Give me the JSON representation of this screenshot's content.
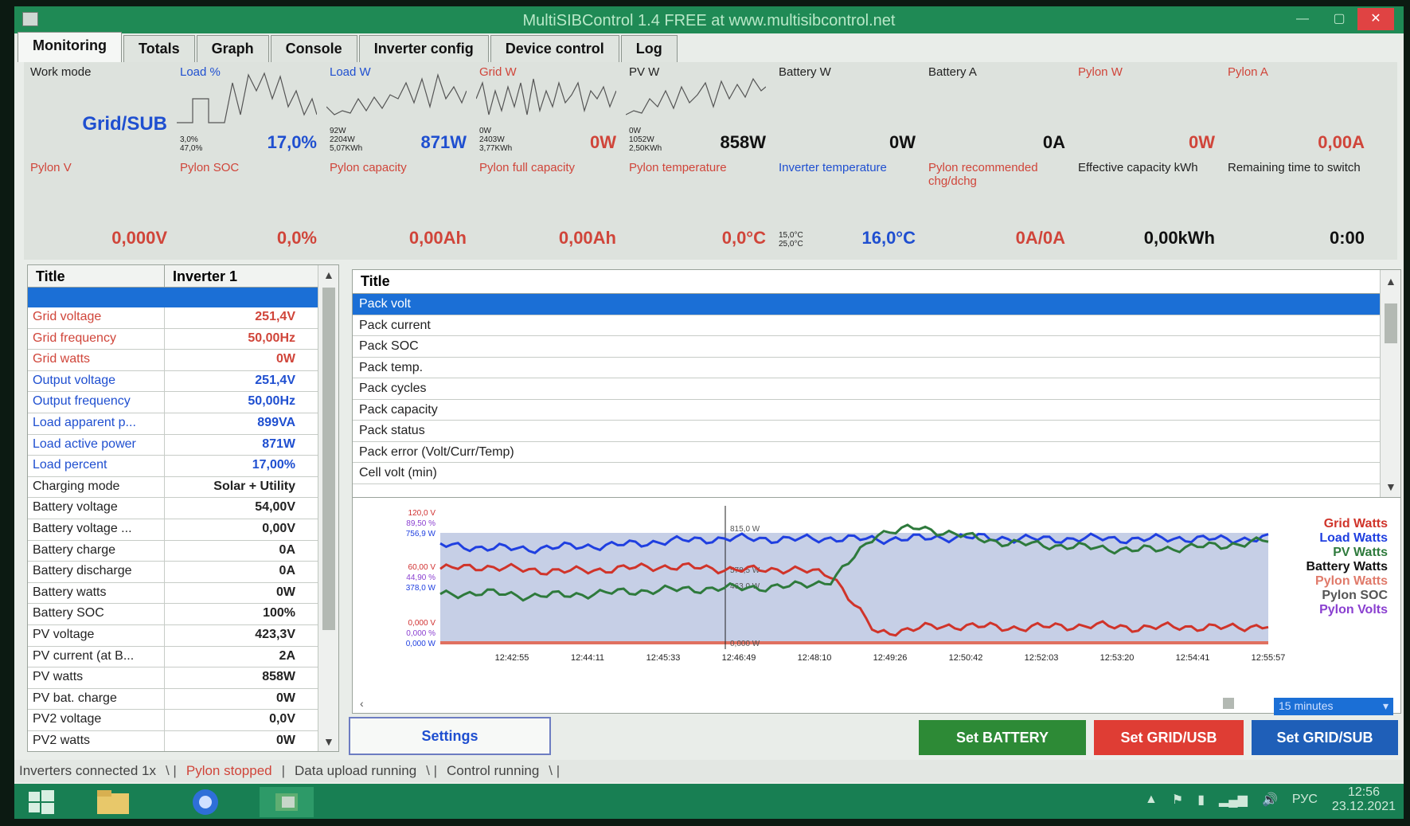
{
  "window": {
    "title": "MultiSIBControl 1.4 FREE at www.multisibcontrol.net"
  },
  "tabs": [
    "Monitoring",
    "Totals",
    "Graph",
    "Console",
    "Inverter config",
    "Device control",
    "Log"
  ],
  "tiles_top": [
    {
      "label": "Work mode",
      "value": "Grid/SUB"
    },
    {
      "label": "Load %",
      "value": "17,0%",
      "small": "3,0%\n47,0%"
    },
    {
      "label": "Load W",
      "value": "871W",
      "small": "92W\n2204W\n5,07KWh"
    },
    {
      "label": "Grid W",
      "value": "0W",
      "small": "0W\n2403W\n3,77KWh"
    },
    {
      "label": "PV W",
      "value": "858W",
      "small": "0W\n1052W\n2,50KWh"
    },
    {
      "label": "Battery W",
      "value": "0W"
    },
    {
      "label": "Battery A",
      "value": "0A"
    },
    {
      "label": "Pylon W",
      "value": "0W"
    },
    {
      "label": "Pylon A",
      "value": "0,00A"
    }
  ],
  "tiles_bottom": [
    {
      "label": "Pylon V",
      "value": "0,000V"
    },
    {
      "label": "Pylon SOC",
      "value": "0,0%"
    },
    {
      "label": "Pylon capacity",
      "value": "0,00Ah"
    },
    {
      "label": "Pylon full capacity",
      "value": "0,00Ah"
    },
    {
      "label": "Pylon temperature",
      "value": "0,0°C"
    },
    {
      "label": "Inverter temperature",
      "value": "16,0°C",
      "small": "15,0°C\n25,0°C"
    },
    {
      "label": "Pylon recommended chg/dchg",
      "value": "0A/0A"
    },
    {
      "label": "Effective capacity kWh",
      "value": "0,00kWh"
    },
    {
      "label": "Remaining time to switch",
      "value": "0:00"
    }
  ],
  "left_table": {
    "headers": [
      "Title",
      "Inverter 1"
    ],
    "rows": [
      {
        "k": "Grid voltage",
        "v": "251,4V",
        "c": "red"
      },
      {
        "k": "Grid frequency",
        "v": "50,00Hz",
        "c": "red"
      },
      {
        "k": "Grid watts",
        "v": "0W",
        "c": "red"
      },
      {
        "k": "Output voltage",
        "v": "251,4V",
        "c": "blue"
      },
      {
        "k": "Output frequency",
        "v": "50,00Hz",
        "c": "blue"
      },
      {
        "k": "Load apparent p...",
        "v": "899VA",
        "c": "blue"
      },
      {
        "k": "Load active power",
        "v": "871W",
        "c": "blue"
      },
      {
        "k": "Load percent",
        "v": "17,00%",
        "c": "blue"
      },
      {
        "k": "Charging mode",
        "v": "Solar + Utility",
        "c": "dark"
      },
      {
        "k": "Battery voltage",
        "v": "54,00V",
        "c": "dark"
      },
      {
        "k": "Battery voltage ...",
        "v": "0,00V",
        "c": "dark"
      },
      {
        "k": "Battery charge",
        "v": "0A",
        "c": "dark"
      },
      {
        "k": "Battery discharge",
        "v": "0A",
        "c": "dark"
      },
      {
        "k": "Battery watts",
        "v": "0W",
        "c": "dark"
      },
      {
        "k": "Battery SOC",
        "v": "100%",
        "c": "dark"
      },
      {
        "k": "PV voltage",
        "v": "423,3V",
        "c": "dark"
      },
      {
        "k": "PV current (at B...",
        "v": "2A",
        "c": "dark"
      },
      {
        "k": "PV watts",
        "v": "858W",
        "c": "dark"
      },
      {
        "k": "PV bat. charge",
        "v": "0W",
        "c": "dark"
      },
      {
        "k": "PV2 voltage",
        "v": "0,0V",
        "c": "dark"
      },
      {
        "k": "PV2 watts",
        "v": "0W",
        "c": "dark"
      }
    ]
  },
  "right_list": {
    "header": "Title",
    "rows": [
      "Pack volt",
      "Pack current",
      "Pack SOC",
      "Pack temp.",
      "Pack cycles",
      "Pack capacity",
      "Pack status",
      "Pack error (Volt/Curr/Temp)",
      "Cell volt (min)"
    ]
  },
  "chart_data": {
    "type": "line",
    "x_ticks": [
      "12:42:55",
      "12:44:11",
      "12:45:33",
      "12:46:49",
      "12:48:10",
      "12:49:26",
      "12:50:42",
      "12:52:03",
      "12:53:20",
      "12:54:41",
      "12:55:57"
    ],
    "y_labels_top": [
      "120,0 V",
      "89,50 %",
      "756,9 W"
    ],
    "y_labels_mid": [
      "60,00 V",
      "44,90 %",
      "378,0 W"
    ],
    "y_labels_bottom": [
      "0,000 V",
      "0,000 %",
      "0,000 W"
    ],
    "series": [
      {
        "name": "Grid Watts",
        "color": "#d0342a",
        "values": [
          0.6,
          0.62,
          0.59,
          0.58,
          0.6,
          0.62,
          0.61,
          0.59,
          0.6,
          0.55,
          0.05,
          0.1,
          0.12,
          0.1,
          0.11,
          0.12,
          0.1,
          0.11,
          0.1,
          0.12
        ]
      },
      {
        "name": "Load Watts",
        "color": "#1f3fe0",
        "values": [
          0.8,
          0.78,
          0.77,
          0.79,
          0.8,
          0.83,
          0.85,
          0.86,
          0.85,
          0.86,
          0.85,
          0.86,
          0.87,
          0.86,
          0.85,
          0.86,
          0.85,
          0.86,
          0.85,
          0.86
        ]
      },
      {
        "name": "PV Watts",
        "color": "#2e7a3c",
        "values": [
          0.38,
          0.4,
          0.37,
          0.38,
          0.4,
          0.42,
          0.43,
          0.44,
          0.45,
          0.5,
          0.9,
          0.95,
          0.88,
          0.82,
          0.8,
          0.78,
          0.76,
          0.78,
          0.8,
          0.84
        ]
      },
      {
        "name": "Battery Watts",
        "color": "#111111",
        "values": []
      },
      {
        "name": "Pylon Watts",
        "color": "#e07a6a",
        "values": []
      },
      {
        "name": "Pylon SOC",
        "color": "#555555",
        "values": []
      },
      {
        "name": "Pylon Volts",
        "color": "#8a3fd0",
        "values": []
      }
    ]
  },
  "chart_labels": {
    "cursor_labels": [
      "815,0 W",
      "578,5 W",
      "463,0 W",
      "0,000 W"
    ]
  },
  "range_select": "15 minutes",
  "buttons": {
    "settings": "Settings",
    "battery": "Set BATTERY",
    "gridusb": "Set GRID/USB",
    "gridsub": "Set GRID/SUB"
  },
  "status": [
    "Inverters connected 1x",
    "Pylon stopped",
    "Data upload running",
    "Control running"
  ],
  "taskbar": {
    "lang": "РУС",
    "time": "12:56",
    "date": "23.12.2021"
  }
}
